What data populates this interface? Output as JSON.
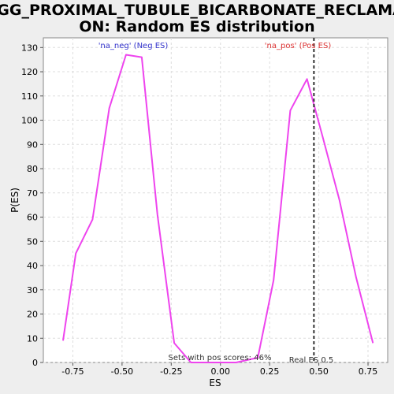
{
  "chart_data": {
    "type": "line",
    "title_line1": "KEGG_PROXIMAL_TUBULE_BICARBONATE_RECLAMATI",
    "title_line2": "ON: Random ES distribution",
    "xlabel": "ES",
    "ylabel": "P(ES)",
    "xlim": [
      -0.9,
      0.85
    ],
    "ylim": [
      0,
      134
    ],
    "x_ticks": [
      -0.75,
      -0.5,
      -0.25,
      0.0,
      0.25,
      0.5,
      0.75
    ],
    "x_tick_labels": [
      "-0.75",
      "-0.50",
      "-0.25",
      "0.00",
      "0.25",
      "0.50",
      "0.75"
    ],
    "y_ticks": [
      0,
      10,
      20,
      30,
      40,
      50,
      60,
      70,
      80,
      90,
      100,
      110,
      120,
      130
    ],
    "grid": true,
    "series": [
      {
        "color": "#ee44ee",
        "x": [
          -0.8,
          -0.735,
          -0.65,
          -0.565,
          -0.48,
          -0.4,
          -0.32,
          -0.235,
          -0.15,
          -0.07,
          0.0,
          0.08,
          0.19,
          0.27,
          0.355,
          0.44,
          0.52,
          0.605,
          0.69,
          0.775
        ],
        "y": [
          9,
          45,
          59,
          105,
          127,
          126,
          61,
          8,
          0,
          0,
          0,
          0,
          2,
          34,
          104,
          117,
          93,
          67,
          35,
          8
        ]
      }
    ],
    "real_es_value": 0.475,
    "annotations": {
      "neg_label": "'na_neg' (Neg ES)",
      "pos_label": "'na_pos' (Pos ES)",
      "pos_scores": "Sets with pos scores: 46%",
      "real_es": "Real ES 0.5"
    },
    "colors": {
      "neg_label": "#3333cc",
      "pos_label": "#dd3333",
      "line": "#ee44ee",
      "real_es_line": "#333333"
    }
  }
}
